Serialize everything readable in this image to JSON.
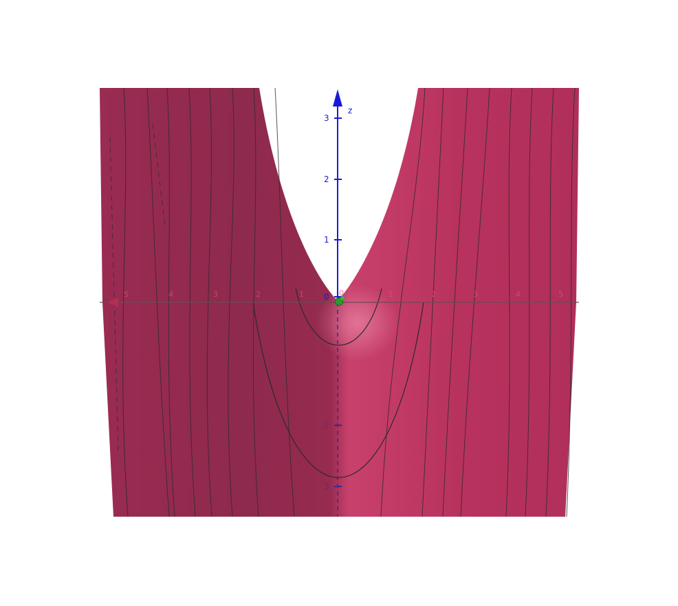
{
  "axes": {
    "z_axis": {
      "label": "z",
      "tick_labels": [
        "3",
        "2",
        "1",
        "0"
      ],
      "below_tick_labels": [
        "2",
        "3"
      ],
      "color": "#1a1ad6"
    },
    "x_axis": {
      "tick_labels": [
        "1",
        "2",
        "3",
        "4",
        "5"
      ],
      "left_tick_labels": [
        "5",
        "4",
        "3",
        "2",
        "1"
      ],
      "origin_label": "0",
      "color": "#c8415f"
    }
  },
  "surface": {
    "color": "#b8325e",
    "dark_color": "#8f2a4c",
    "mesh_color": "#2b2b2b"
  },
  "origin_point": {
    "color": "#2e9a2e"
  }
}
